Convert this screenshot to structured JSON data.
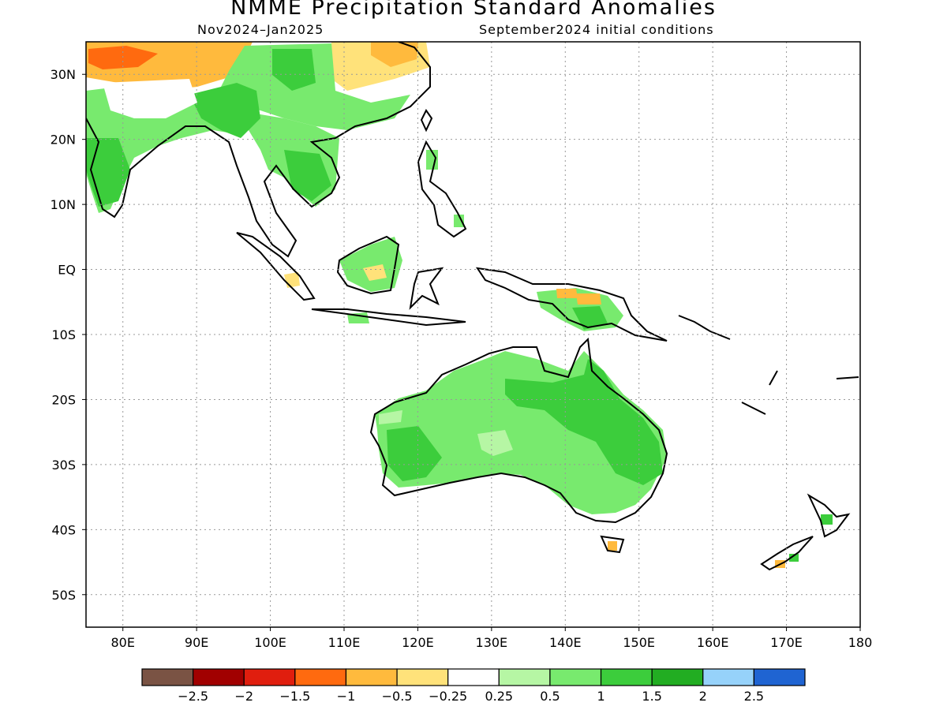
{
  "title": "NMME Precipitation Standard Anomalies",
  "subtitle_left": "Nov2024–Jan2025",
  "subtitle_right": "September2024 initial conditions",
  "map": {
    "lon_range": [
      75,
      180
    ],
    "lat_range": [
      -55,
      35
    ],
    "lat_ticks": [
      {
        "value": 30,
        "label": "30N"
      },
      {
        "value": 20,
        "label": "20N"
      },
      {
        "value": 10,
        "label": "10N"
      },
      {
        "value": 0,
        "label": "EQ"
      },
      {
        "value": -10,
        "label": "10S"
      },
      {
        "value": -20,
        "label": "20S"
      },
      {
        "value": -30,
        "label": "30S"
      },
      {
        "value": -40,
        "label": "40S"
      },
      {
        "value": -50,
        "label": "50S"
      }
    ],
    "lon_ticks": [
      {
        "value": 80,
        "label": "80E"
      },
      {
        "value": 90,
        "label": "90E"
      },
      {
        "value": 100,
        "label": "100E"
      },
      {
        "value": 110,
        "label": "110E"
      },
      {
        "value": 120,
        "label": "120E"
      },
      {
        "value": 130,
        "label": "130E"
      },
      {
        "value": 140,
        "label": "140E"
      },
      {
        "value": 150,
        "label": "150E"
      },
      {
        "value": 160,
        "label": "160E"
      },
      {
        "value": 170,
        "label": "170E"
      },
      {
        "value": 180,
        "label": "180"
      }
    ]
  },
  "colorbar": {
    "colors": [
      "#7a5344",
      "#a10000",
      "#e01e0e",
      "#ff6a0f",
      "#ffba3d",
      "#ffe27a",
      "#ffffff",
      "#b6f6a4",
      "#78ea6e",
      "#3ccd3c",
      "#22ad22",
      "#96d2fa",
      "#1f64d2"
    ],
    "labels": [
      "−2.5",
      "−2",
      "−1.5",
      "−1",
      "−0.5",
      "−0.25",
      "0.25",
      "0.5",
      "1",
      "1.5",
      "2",
      "2.5"
    ]
  }
}
